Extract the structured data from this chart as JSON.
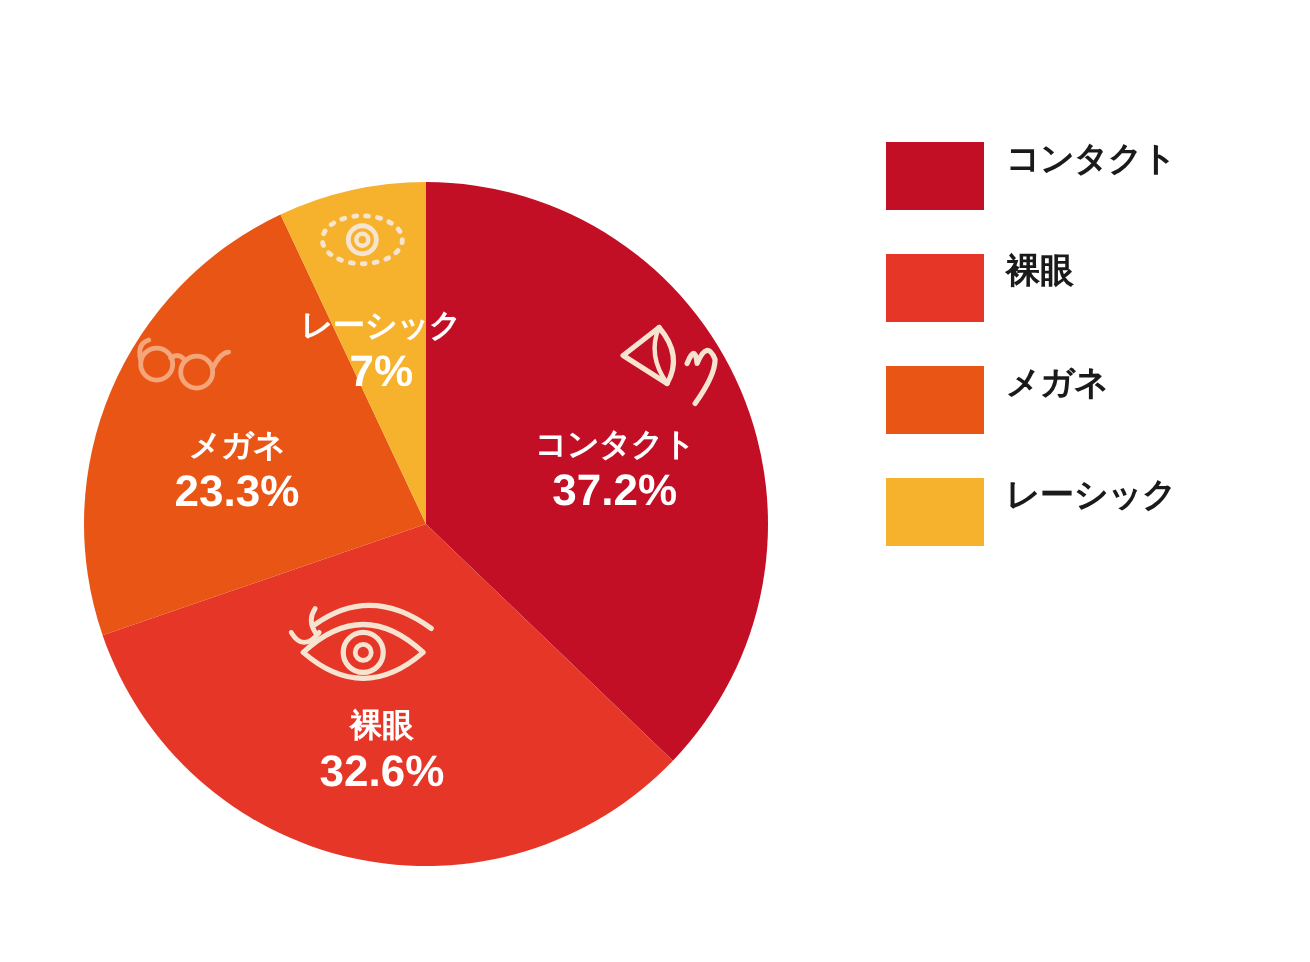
{
  "chart_data": {
    "type": "pie",
    "categories": [
      "コンタクト",
      "裸眼",
      "メガネ",
      "レーシック"
    ],
    "values": [
      37.2,
      32.6,
      23.3,
      7
    ],
    "value_labels": [
      "37.2%",
      "32.6%",
      "23.3%",
      "7%"
    ],
    "colors": [
      "#c20f25",
      "#e53628",
      "#e85514",
      "#f6b22d"
    ],
    "legend": "right"
  }
}
